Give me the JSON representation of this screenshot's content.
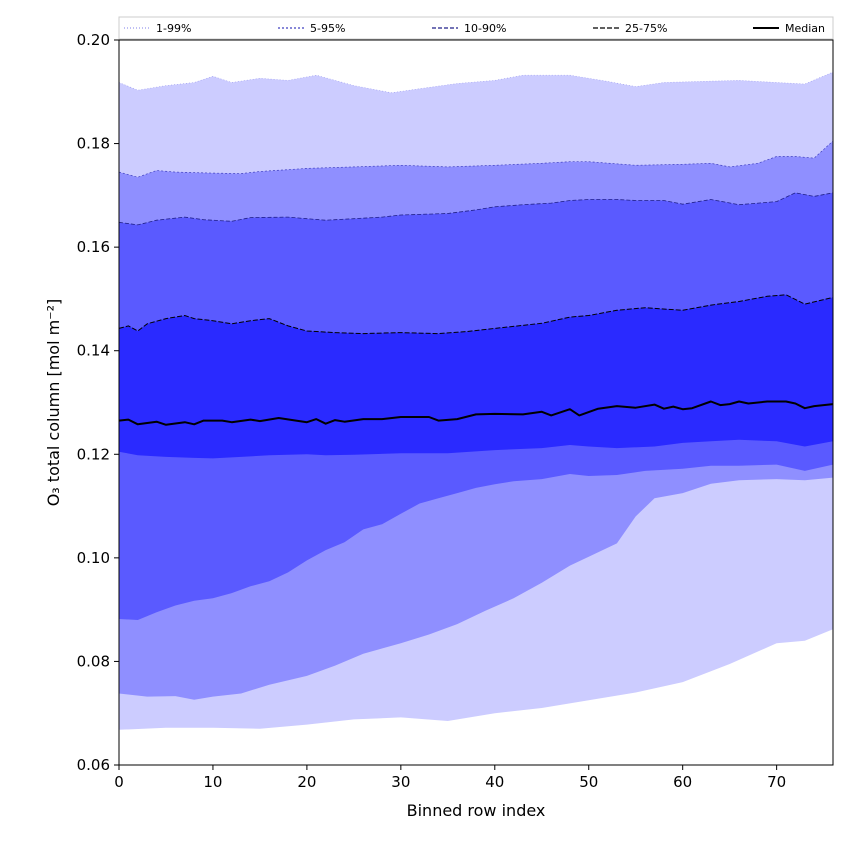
{
  "chart_data": {
    "type": "area",
    "xlabel": "Binned row index",
    "ylabel": "O₃ total column [mol m⁻²]",
    "xlim": [
      0,
      76
    ],
    "ylim": [
      0.06,
      0.2
    ],
    "xticks": [
      0,
      10,
      20,
      30,
      40,
      50,
      60,
      70
    ],
    "yticks": [
      0.06,
      0.08,
      0.1,
      0.12,
      0.14,
      0.16,
      0.18,
      0.2
    ],
    "ytick_labels": [
      "0.06",
      "0.08",
      "0.10",
      "0.12",
      "0.14",
      "0.16",
      "0.18",
      "0.20"
    ],
    "legend_position": "top",
    "bands": [
      {
        "name": "1-99%",
        "fill": "#ccccff",
        "line_color": "#9999ee",
        "dash": "1 2",
        "line_width": 0.6,
        "lower": [
          [
            0,
            0.0668
          ],
          [
            5,
            0.0672
          ],
          [
            10,
            0.0672
          ],
          [
            15,
            0.067
          ],
          [
            20,
            0.0678
          ],
          [
            25,
            0.0688
          ],
          [
            30,
            0.0692
          ],
          [
            35,
            0.0685
          ],
          [
            40,
            0.07
          ],
          [
            45,
            0.071
          ],
          [
            50,
            0.0725
          ],
          [
            55,
            0.074
          ],
          [
            60,
            0.076
          ],
          [
            65,
            0.0795
          ],
          [
            70,
            0.0835
          ],
          [
            73,
            0.084
          ],
          [
            76,
            0.0862
          ]
        ],
        "upper": [
          [
            0,
            0.1918
          ],
          [
            2,
            0.1903
          ],
          [
            5,
            0.1912
          ],
          [
            8,
            0.1918
          ],
          [
            10,
            0.193
          ],
          [
            12,
            0.1918
          ],
          [
            15,
            0.1926
          ],
          [
            18,
            0.1922
          ],
          [
            21,
            0.1932
          ],
          [
            25,
            0.1912
          ],
          [
            29,
            0.1898
          ],
          [
            32,
            0.1906
          ],
          [
            36,
            0.1916
          ],
          [
            40,
            0.1922
          ],
          [
            43,
            0.1932
          ],
          [
            48,
            0.1932
          ],
          [
            52,
            0.192
          ],
          [
            55,
            0.191
          ],
          [
            58,
            0.1918
          ],
          [
            62,
            0.192
          ],
          [
            66,
            0.1922
          ],
          [
            70,
            0.1918
          ],
          [
            73,
            0.1915
          ],
          [
            76,
            0.1938
          ]
        ]
      },
      {
        "name": "5-95%",
        "fill": "#8f8fff",
        "line_color": "#4040c0",
        "dash": "2 2",
        "line_width": 0.7,
        "lower": [
          [
            0,
            0.0738
          ],
          [
            3,
            0.0732
          ],
          [
            6,
            0.0733
          ],
          [
            8,
            0.0726
          ],
          [
            10,
            0.0732
          ],
          [
            13,
            0.0738
          ],
          [
            16,
            0.0755
          ],
          [
            20,
            0.0772
          ],
          [
            23,
            0.0792
          ],
          [
            26,
            0.0815
          ],
          [
            30,
            0.0835
          ],
          [
            33,
            0.0852
          ],
          [
            36,
            0.0872
          ],
          [
            39,
            0.0898
          ],
          [
            42,
            0.0922
          ],
          [
            45,
            0.0952
          ],
          [
            48,
            0.0985
          ],
          [
            50,
            0.1002
          ],
          [
            53,
            0.1028
          ],
          [
            55,
            0.108
          ],
          [
            57,
            0.1115
          ],
          [
            60,
            0.1125
          ],
          [
            63,
            0.1143
          ],
          [
            66,
            0.115
          ],
          [
            70,
            0.1152
          ],
          [
            73,
            0.115
          ],
          [
            76,
            0.1155
          ]
        ],
        "upper": [
          [
            0,
            0.1745
          ],
          [
            2,
            0.1735
          ],
          [
            4,
            0.1748
          ],
          [
            6,
            0.1745
          ],
          [
            10,
            0.1743
          ],
          [
            13,
            0.1742
          ],
          [
            15,
            0.1746
          ],
          [
            20,
            0.1752
          ],
          [
            25,
            0.1755
          ],
          [
            30,
            0.1758
          ],
          [
            35,
            0.1755
          ],
          [
            40,
            0.1758
          ],
          [
            45,
            0.1762
          ],
          [
            48,
            0.1765
          ],
          [
            50,
            0.1765
          ],
          [
            55,
            0.1758
          ],
          [
            60,
            0.176
          ],
          [
            63,
            0.1762
          ],
          [
            65,
            0.1755
          ],
          [
            68,
            0.1762
          ],
          [
            70,
            0.1775
          ],
          [
            72,
            0.1775
          ],
          [
            74,
            0.1772
          ],
          [
            76,
            0.1805
          ]
        ]
      },
      {
        "name": "10-90%",
        "fill": "#5a5aff",
        "line_color": "#20208a",
        "dash": "4 2",
        "line_width": 0.8,
        "lower": [
          [
            0,
            0.0882
          ],
          [
            2,
            0.088
          ],
          [
            4,
            0.0895
          ],
          [
            6,
            0.0908
          ],
          [
            8,
            0.0917
          ],
          [
            10,
            0.0922
          ],
          [
            12,
            0.0932
          ],
          [
            14,
            0.0945
          ],
          [
            16,
            0.0955
          ],
          [
            18,
            0.0972
          ],
          [
            20,
            0.0995
          ],
          [
            22,
            0.1015
          ],
          [
            24,
            0.103
          ],
          [
            26,
            0.1055
          ],
          [
            28,
            0.1065
          ],
          [
            30,
            0.1085
          ],
          [
            32,
            0.1105
          ],
          [
            34,
            0.1115
          ],
          [
            36,
            0.1125
          ],
          [
            38,
            0.1135
          ],
          [
            40,
            0.1142
          ],
          [
            42,
            0.1148
          ],
          [
            45,
            0.1152
          ],
          [
            48,
            0.1162
          ],
          [
            50,
            0.1158
          ],
          [
            53,
            0.116
          ],
          [
            56,
            0.1168
          ],
          [
            60,
            0.1172
          ],
          [
            63,
            0.1178
          ],
          [
            66,
            0.1178
          ],
          [
            70,
            0.118
          ],
          [
            73,
            0.1168
          ],
          [
            76,
            0.118
          ]
        ],
        "upper": [
          [
            0,
            0.1648
          ],
          [
            2,
            0.1643
          ],
          [
            4,
            0.1652
          ],
          [
            7,
            0.1658
          ],
          [
            9,
            0.1653
          ],
          [
            12,
            0.165
          ],
          [
            14,
            0.1657
          ],
          [
            18,
            0.1658
          ],
          [
            20,
            0.1655
          ],
          [
            22,
            0.1652
          ],
          [
            25,
            0.1655
          ],
          [
            28,
            0.1658
          ],
          [
            30,
            0.1662
          ],
          [
            35,
            0.1665
          ],
          [
            38,
            0.1672
          ],
          [
            40,
            0.1678
          ],
          [
            43,
            0.1682
          ],
          [
            46,
            0.1685
          ],
          [
            48,
            0.169
          ],
          [
            50,
            0.1692
          ],
          [
            53,
            0.1692
          ],
          [
            55,
            0.169
          ],
          [
            58,
            0.169
          ],
          [
            60,
            0.1683
          ],
          [
            63,
            0.1692
          ],
          [
            66,
            0.1682
          ],
          [
            70,
            0.1688
          ],
          [
            72,
            0.1705
          ],
          [
            74,
            0.1698
          ],
          [
            76,
            0.1705
          ]
        ]
      },
      {
        "name": "25-75%",
        "fill": "#2a2aff",
        "line_color": "#000000",
        "dash": "5 2",
        "line_width": 1.0,
        "lower": [
          [
            0,
            0.1205
          ],
          [
            2,
            0.1198
          ],
          [
            5,
            0.1195
          ],
          [
            8,
            0.1193
          ],
          [
            10,
            0.1192
          ],
          [
            13,
            0.1195
          ],
          [
            16,
            0.1198
          ],
          [
            20,
            0.12
          ],
          [
            22,
            0.1198
          ],
          [
            25,
            0.1199
          ],
          [
            30,
            0.1202
          ],
          [
            35,
            0.1202
          ],
          [
            40,
            0.1208
          ],
          [
            45,
            0.1212
          ],
          [
            48,
            0.1218
          ],
          [
            50,
            0.1215
          ],
          [
            53,
            0.1212
          ],
          [
            57,
            0.1215
          ],
          [
            60,
            0.1222
          ],
          [
            63,
            0.1225
          ],
          [
            66,
            0.1228
          ],
          [
            70,
            0.1225
          ],
          [
            73,
            0.1215
          ],
          [
            76,
            0.1225
          ]
        ],
        "upper": [
          [
            0,
            0.1443
          ],
          [
            1,
            0.1448
          ],
          [
            2,
            0.1438
          ],
          [
            3,
            0.1452
          ],
          [
            5,
            0.1462
          ],
          [
            7,
            0.1468
          ],
          [
            8,
            0.1462
          ],
          [
            10,
            0.1458
          ],
          [
            12,
            0.1452
          ],
          [
            14,
            0.1458
          ],
          [
            16,
            0.1462
          ],
          [
            18,
            0.1448
          ],
          [
            20,
            0.1438
          ],
          [
            23,
            0.1435
          ],
          [
            26,
            0.1433
          ],
          [
            30,
            0.1435
          ],
          [
            34,
            0.1433
          ],
          [
            37,
            0.1437
          ],
          [
            40,
            0.1443
          ],
          [
            45,
            0.1453
          ],
          [
            48,
            0.1465
          ],
          [
            50,
            0.1468
          ],
          [
            53,
            0.1478
          ],
          [
            56,
            0.1483
          ],
          [
            60,
            0.1478
          ],
          [
            63,
            0.1488
          ],
          [
            66,
            0.1495
          ],
          [
            69,
            0.1505
          ],
          [
            71,
            0.1508
          ],
          [
            73,
            0.149
          ],
          [
            76,
            0.1503
          ]
        ]
      }
    ],
    "median": {
      "name": "Median",
      "color": "#000000",
      "points": [
        [
          0,
          0.1265
        ],
        [
          1,
          0.1267
        ],
        [
          2,
          0.1258
        ],
        [
          4,
          0.1263
        ],
        [
          5,
          0.1257
        ],
        [
          7,
          0.1262
        ],
        [
          8,
          0.1258
        ],
        [
          9,
          0.1265
        ],
        [
          11,
          0.1265
        ],
        [
          12,
          0.1262
        ],
        [
          14,
          0.1267
        ],
        [
          15,
          0.1264
        ],
        [
          17,
          0.127
        ],
        [
          20,
          0.1262
        ],
        [
          21,
          0.1268
        ],
        [
          22,
          0.1259
        ],
        [
          23,
          0.1266
        ],
        [
          24,
          0.1263
        ],
        [
          26,
          0.1268
        ],
        [
          28,
          0.1268
        ],
        [
          30,
          0.1272
        ],
        [
          33,
          0.1272
        ],
        [
          34,
          0.1265
        ],
        [
          36,
          0.1268
        ],
        [
          38,
          0.1277
        ],
        [
          40,
          0.1278
        ],
        [
          43,
          0.1277
        ],
        [
          45,
          0.1282
        ],
        [
          46,
          0.1275
        ],
        [
          48,
          0.1287
        ],
        [
          49,
          0.1275
        ],
        [
          51,
          0.1288
        ],
        [
          53,
          0.1293
        ],
        [
          55,
          0.129
        ],
        [
          57,
          0.1296
        ],
        [
          58,
          0.1288
        ],
        [
          59,
          0.1292
        ],
        [
          60,
          0.1287
        ],
        [
          61,
          0.1289
        ],
        [
          63,
          0.1302
        ],
        [
          64,
          0.1295
        ],
        [
          65,
          0.1297
        ],
        [
          66,
          0.1302
        ],
        [
          67,
          0.1298
        ],
        [
          69,
          0.1302
        ],
        [
          71,
          0.1302
        ],
        [
          72,
          0.1298
        ],
        [
          73,
          0.1289
        ],
        [
          74,
          0.1293
        ],
        [
          76,
          0.1297
        ]
      ]
    }
  }
}
